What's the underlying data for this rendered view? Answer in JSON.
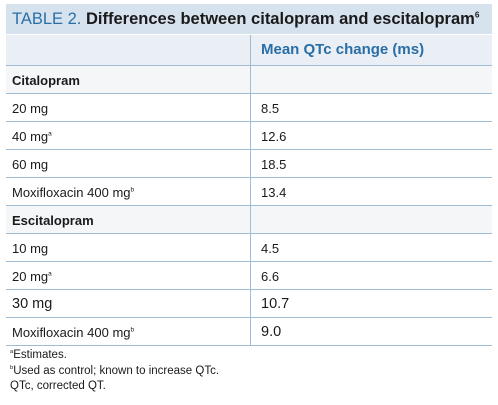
{
  "title": {
    "label": "TABLE 2.",
    "text": "Differences between citalopram and escitalopram",
    "ref": "6"
  },
  "table": {
    "column_header": "Mean QTc change (ms)",
    "groups": [
      {
        "name": "Citalopram",
        "rows": [
          {
            "drug": "20 mg",
            "mark": "",
            "value": "8.5"
          },
          {
            "drug": "40 mg",
            "mark": "a",
            "value": "12.6"
          },
          {
            "drug": "60 mg",
            "mark": "",
            "value": "18.5"
          },
          {
            "drug": "Moxifloxacin 400 mg",
            "mark": "b",
            "value": "13.4"
          }
        ]
      },
      {
        "name": "Escitalopram",
        "rows": [
          {
            "drug": "10 mg",
            "mark": "",
            "value": "4.5"
          },
          {
            "drug": "20 mg",
            "mark": "a",
            "value": "6.6"
          },
          {
            "drug": "30 mg",
            "mark": "",
            "value": "10.7"
          },
          {
            "drug": "Moxifloxacin 400 mg",
            "mark": "b",
            "value": "9.0"
          }
        ]
      }
    ]
  },
  "footnotes": [
    {
      "mark": "a",
      "text": "Estimates."
    },
    {
      "mark": "b",
      "text": "Used as control; known to increase QTc."
    },
    {
      "mark": "",
      "text": "QTc, corrected QT."
    }
  ]
}
